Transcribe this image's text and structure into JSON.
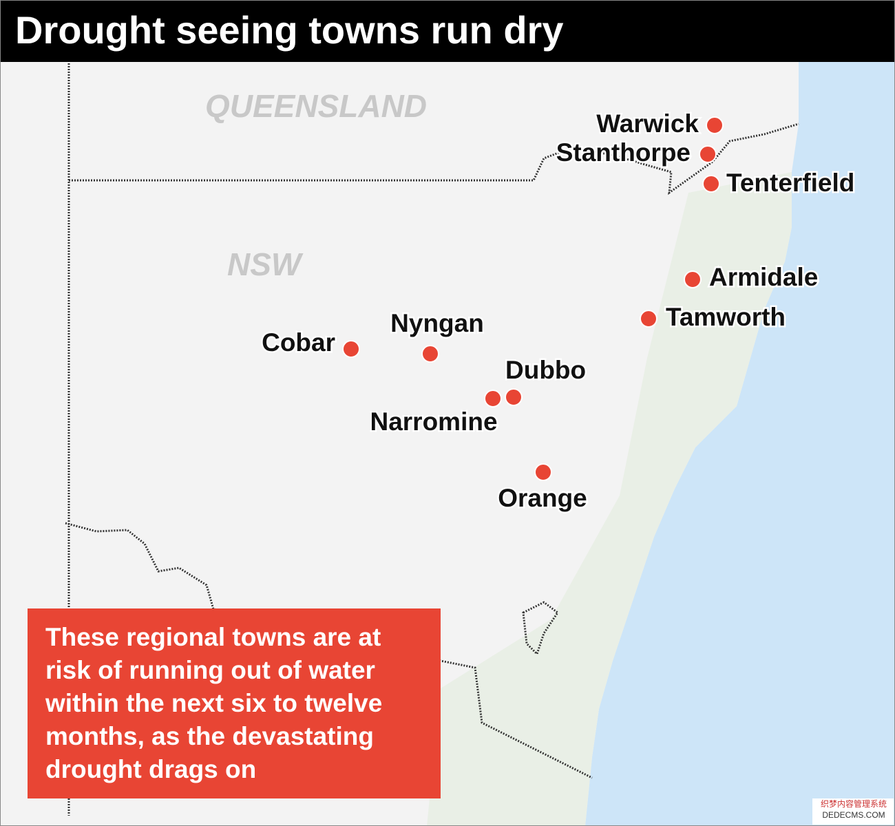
{
  "title": "Drought seeing towns run dry",
  "regions": [
    "QUEENSLAND",
    "NSW"
  ],
  "towns": [
    {
      "label": "Warwick"
    },
    {
      "label": "Stanthorpe"
    },
    {
      "label": "Tenterfield"
    },
    {
      "label": "Armidale"
    },
    {
      "label": "Tamworth"
    },
    {
      "label": "Cobar"
    },
    {
      "label": "Nyngan"
    },
    {
      "label": "Dubbo"
    },
    {
      "label": "Narromine"
    },
    {
      "label": "Orange"
    }
  ],
  "note": [
    "These regional towns are at",
    "risk of running out of water",
    "within the next six to twelve",
    "months, as the devastating",
    "drought drags on"
  ],
  "watermark": [
    "织梦内容管理系统",
    "DEDECMS.COM"
  ]
}
